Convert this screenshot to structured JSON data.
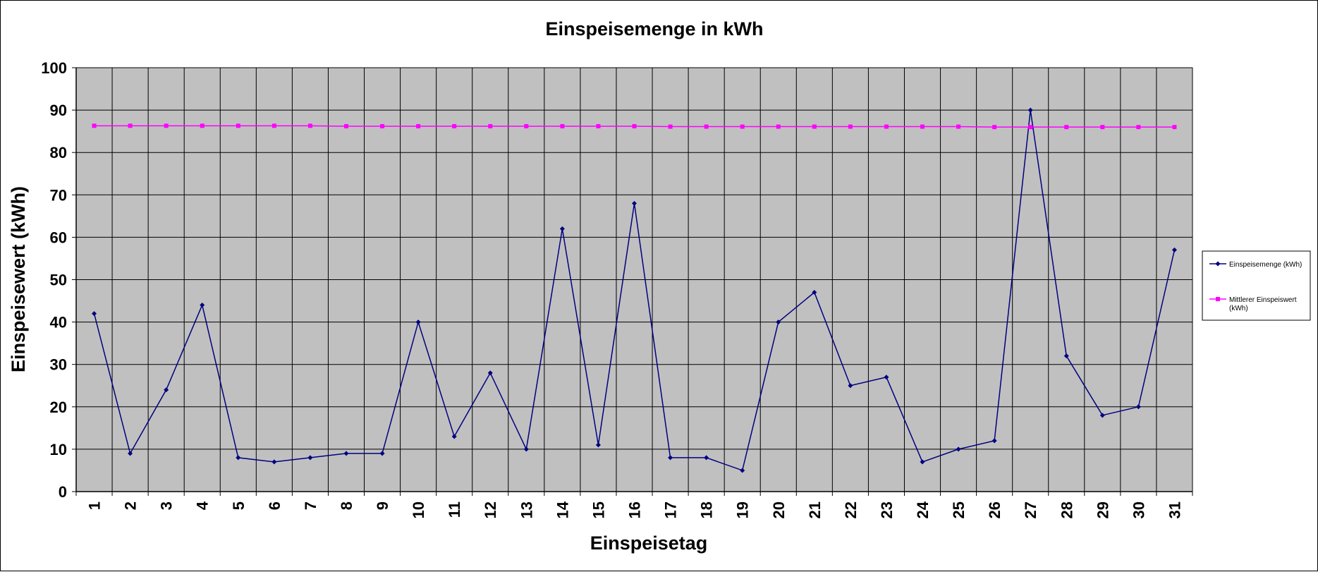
{
  "chart_data": {
    "type": "line",
    "title": "Einspeisemenge in kWh",
    "xlabel": "Einspeisetag",
    "ylabel": "Einspeisewert  (kWh)",
    "ylim": [
      0,
      100
    ],
    "y_ticks": [
      "0",
      "10",
      "20",
      "30",
      "40",
      "50",
      "60",
      "70",
      "80",
      "90",
      "100"
    ],
    "categories": [
      "1",
      "2",
      "3",
      "4",
      "5",
      "6",
      "7",
      "8",
      "9",
      "10",
      "11",
      "12",
      "13",
      "14",
      "15",
      "16",
      "17",
      "18",
      "19",
      "20",
      "21",
      "22",
      "23",
      "24",
      "25",
      "26",
      "27",
      "28",
      "29",
      "30",
      "31"
    ],
    "grid": true,
    "legend_position": "right",
    "plot_background": "#c0c0c0",
    "series": [
      {
        "name": "Einspeisemenge (kWh)",
        "color": "#000080",
        "marker": "diamond",
        "values": [
          42,
          9,
          24,
          44,
          8,
          7,
          8,
          9,
          9,
          40,
          13,
          28,
          10,
          62,
          11,
          68,
          8,
          8,
          5,
          40,
          47,
          25,
          27,
          7,
          10,
          12,
          90,
          32,
          18,
          20,
          57
        ]
      },
      {
        "name": "Mittlerer Einspeiswert (kWh)",
        "legend_lines": [
          "Mittlerer Einspeiswert",
          "(kWh)"
        ],
        "color": "#ff00ff",
        "marker": "square",
        "values": [
          86.3,
          86.3,
          86.3,
          86.3,
          86.3,
          86.3,
          86.3,
          86.2,
          86.2,
          86.2,
          86.2,
          86.2,
          86.2,
          86.2,
          86.2,
          86.2,
          86.1,
          86.1,
          86.1,
          86.1,
          86.1,
          86.1,
          86.1,
          86.1,
          86.1,
          86.0,
          86.0,
          86.0,
          86.0,
          86.0,
          86.0
        ]
      }
    ]
  }
}
